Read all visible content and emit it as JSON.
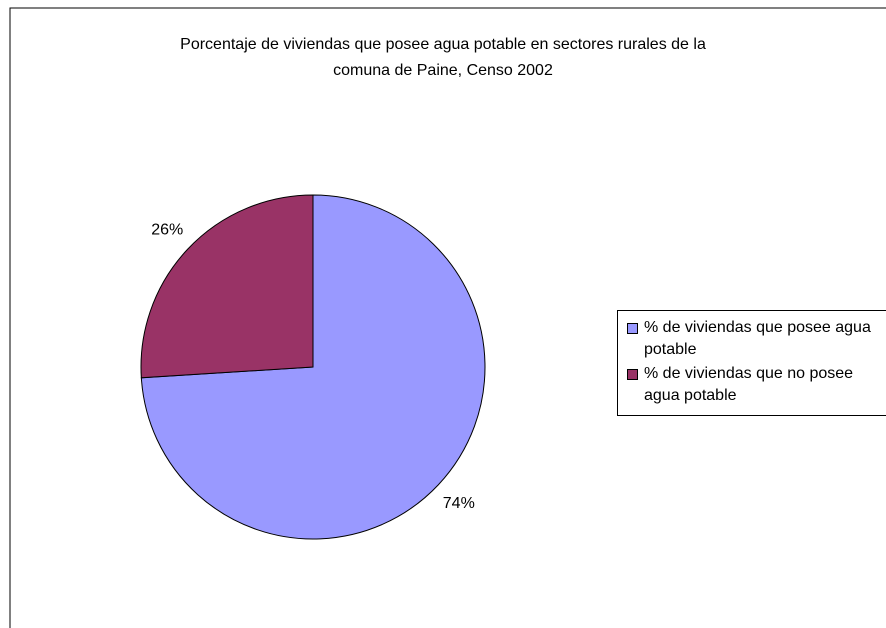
{
  "chart_data": {
    "type": "pie",
    "title": [
      "Porcentaje de viviendas que posee agua potable en sectores rurales de la",
      "comuna de Paine, Censo 2002"
    ],
    "categories": [
      "% de viviendas que posee agua potable",
      "% de viviendas que no posee agua potable"
    ],
    "values": [
      74,
      26
    ],
    "value_labels": [
      "74%",
      "26%"
    ],
    "colors": [
      "#9999ff",
      "#993366"
    ],
    "legend": "right"
  }
}
